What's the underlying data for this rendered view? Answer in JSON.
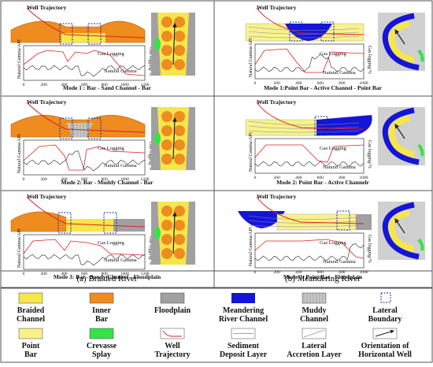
{
  "panels": {
    "left": {
      "caption": "(a) Braided River",
      "modes": [
        {
          "title": "Mode 1 : Bar - Sand Channel - Bar"
        },
        {
          "title": "Mode 2: Bar - Muddy Channel - Bar"
        },
        {
          "title": "Mode 3: Bar - Sandy Channel - Floodplain"
        }
      ]
    },
    "right": {
      "caption": "(b) Meandering River",
      "modes": [
        {
          "title": "Mode 1:Point Bar - Active Channel - Point Bar"
        },
        {
          "title": "Mode 2: Point Bar - Active Channelr"
        },
        {
          "title": "Mode 3: Point Bar - Floodplain"
        }
      ]
    }
  },
  "labels": {
    "well_trajectory": "Well Trajectory",
    "gas_logging": "Gas Logging",
    "natural_gamma": "Natural Gamma",
    "y_left": "Natural Gamma/API",
    "y_right": "Gas logging/%",
    "x_ticks_left": [
      "0",
      "200",
      "400",
      "600",
      "800",
      "1000",
      "1200"
    ],
    "x_ticks_right": [
      "0",
      "200",
      "400",
      "600",
      "800",
      "1000"
    ]
  },
  "legend": {
    "items": [
      {
        "label": "Braided\nChannel",
        "swatch": "braided-channel"
      },
      {
        "label": "Inner\nBar",
        "swatch": "inner-bar"
      },
      {
        "label": "Floodplain",
        "swatch": "floodplain"
      },
      {
        "label": "Meandering\nRiver Channel",
        "swatch": "meandering-channel"
      },
      {
        "label": "Muddy\nChannel",
        "swatch": "muddy-channel"
      },
      {
        "label": "Lateral\nBoundary",
        "swatch": "lateral-boundary"
      },
      {
        "label": "Point\nBar",
        "swatch": "point-bar"
      },
      {
        "label": "Crevasse\nSplay",
        "swatch": "crevasse-splay"
      },
      {
        "label": "Well\nTrajectory",
        "swatch": "well-trajectory"
      },
      {
        "label": "Sediment\nDeposit Layer",
        "swatch": "sediment-layer"
      },
      {
        "label": "Lateral\nAccretion Layer",
        "swatch": "accretion-layer"
      },
      {
        "label": "Orientation of\nHorizontal Well",
        "swatch": "orientation-arrow"
      }
    ]
  },
  "colors": {
    "yellow": "#f5e64a",
    "pale_yellow": "#f7f28c",
    "orange": "#ee8c1f",
    "gray": "#a0a0a0",
    "blue": "#1515d8",
    "green": "#35e24a",
    "red": "#e02020"
  }
}
